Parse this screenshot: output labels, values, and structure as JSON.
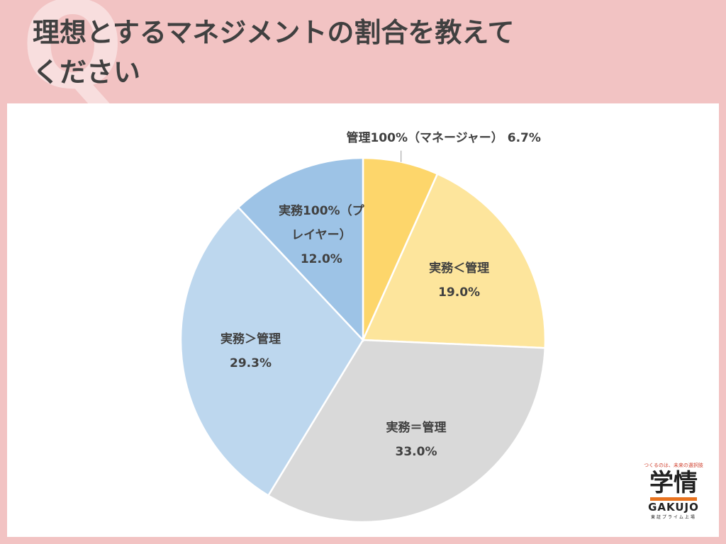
{
  "q_mark": "Q",
  "chart_data": {
    "type": "pie",
    "title": [
      "理想とするマネジメントの割合を教えて",
      "ください"
    ],
    "categories": [
      "管理100%（マネージャー）",
      "実務＜管理",
      "実務＝管理",
      "実務＞管理",
      "実務100%（プレイヤー）"
    ],
    "values": [
      6.7,
      19.0,
      33.0,
      29.3,
      12.0
    ],
    "value_labels": [
      "6.7%",
      "19.0%",
      "33.0%",
      "29.3%",
      "12.0%"
    ],
    "colors": [
      "#fdd66b",
      "#fde59c",
      "#d9d9d9",
      "#bdd7ee",
      "#9dc3e6"
    ]
  },
  "logo": {
    "tagline": "つくるのは、未来の選択肢",
    "name": "学情",
    "roman": "GAKUJO",
    "listing": "東証プライム上場"
  }
}
